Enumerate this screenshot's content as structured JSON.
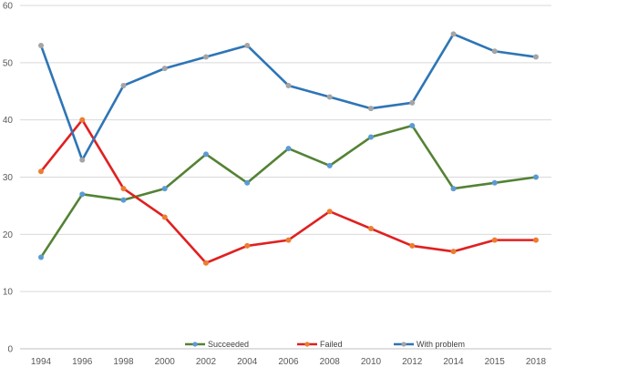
{
  "chart_data": {
    "type": "line",
    "categories": [
      "1994",
      "1996",
      "1998",
      "2000",
      "2002",
      "2004",
      "2006",
      "2008",
      "2010",
      "2012",
      "2014",
      "2015",
      "2018"
    ],
    "series": [
      {
        "name": "Succeeded",
        "values": [
          16,
          27,
          26,
          28,
          34,
          29,
          35,
          32,
          37,
          39,
          28,
          29,
          30
        ],
        "line_color": "#548235",
        "marker_color": "#5B9BD5"
      },
      {
        "name": "Failed",
        "values": [
          31,
          40,
          28,
          23,
          15,
          18,
          19,
          24,
          21,
          18,
          17,
          19,
          19
        ],
        "line_color": "#E02020",
        "marker_color": "#ED7D31"
      },
      {
        "name": "With problem",
        "values": [
          53,
          33,
          46,
          49,
          51,
          53,
          46,
          44,
          42,
          43,
          55,
          52,
          51
        ],
        "line_color": "#2E75B6",
        "marker_color": "#A5A5A5"
      }
    ],
    "y_ticks": [
      "0",
      "10",
      "20",
      "30",
      "40",
      "50",
      "60"
    ],
    "ylim": [
      0,
      60
    ],
    "grid": "horizontal",
    "legend_position": "bottom"
  }
}
